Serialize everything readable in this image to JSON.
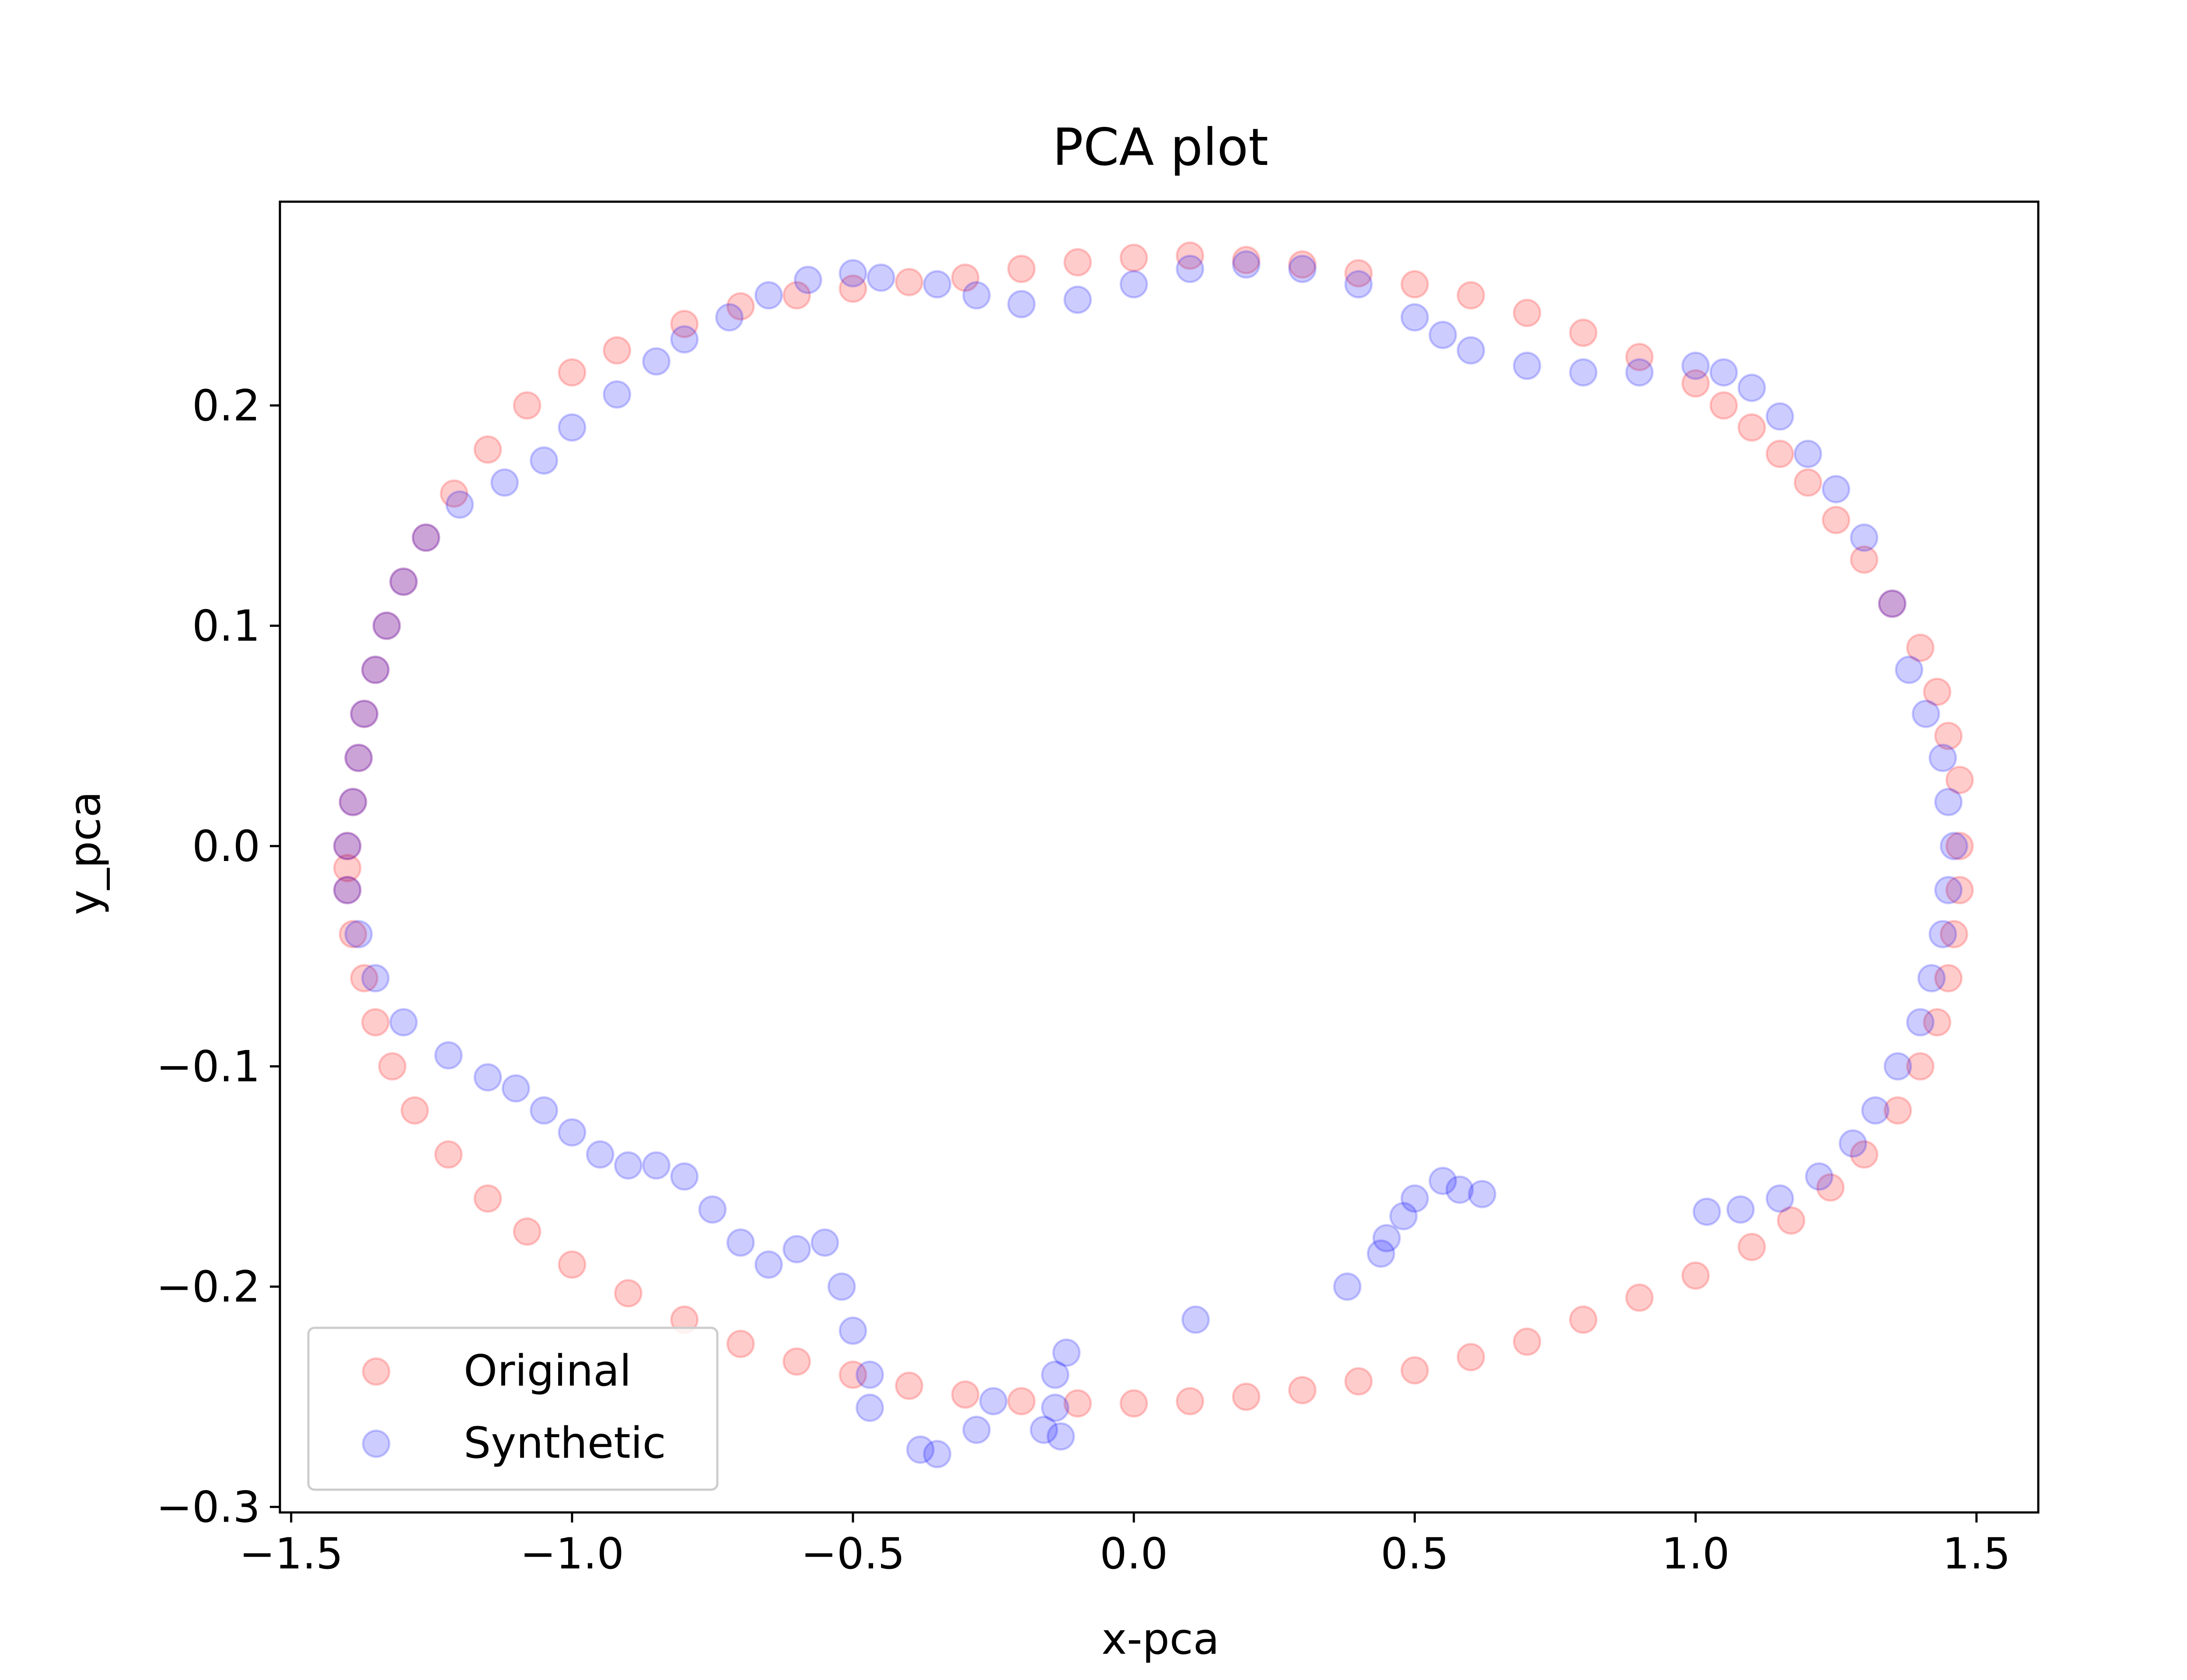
{
  "chart_data": {
    "type": "scatter",
    "title": "PCA plot",
    "xlabel": "x-pca",
    "ylabel": "y_pca",
    "xlim": [
      -1.52,
      1.61
    ],
    "ylim": [
      -0.3025,
      0.2925
    ],
    "xticks": [
      -1.5,
      -1.0,
      -0.5,
      0.0,
      0.5,
      1.0,
      1.5
    ],
    "xtick_labels": [
      "−1.5",
      "−1.0",
      "−0.5",
      "0.0",
      "0.5",
      "1.0",
      "1.5"
    ],
    "yticks": [
      0.2,
      0.1,
      0.0,
      -0.1,
      -0.2,
      -0.3
    ],
    "ytick_labels": [
      "0.2",
      "0.1",
      "0.0",
      "−0.1",
      "−0.2",
      "−0.3"
    ],
    "grid": false,
    "legend_position": "lower-left",
    "series": [
      {
        "name": "Original",
        "color": "#ff0000",
        "points": [
          [
            -1.4,
            -0.01
          ],
          [
            -1.4,
            0.0
          ],
          [
            -1.39,
            0.02
          ],
          [
            -1.38,
            0.04
          ],
          [
            -1.37,
            0.06
          ],
          [
            -1.35,
            0.08
          ],
          [
            -1.33,
            0.1
          ],
          [
            -1.3,
            0.12
          ],
          [
            -1.26,
            0.14
          ],
          [
            -1.21,
            0.16
          ],
          [
            -1.15,
            0.18
          ],
          [
            -1.08,
            0.2
          ],
          [
            -1.0,
            0.215
          ],
          [
            -0.92,
            0.225
          ],
          [
            -0.8,
            0.237
          ],
          [
            -0.7,
            0.245
          ],
          [
            -0.6,
            0.25
          ],
          [
            -0.5,
            0.253
          ],
          [
            -0.4,
            0.256
          ],
          [
            -0.3,
            0.258
          ],
          [
            -0.2,
            0.262
          ],
          [
            -0.1,
            0.265
          ],
          [
            0.0,
            0.267
          ],
          [
            0.1,
            0.268
          ],
          [
            0.2,
            0.266
          ],
          [
            0.3,
            0.264
          ],
          [
            0.4,
            0.26
          ],
          [
            0.5,
            0.255
          ],
          [
            0.6,
            0.25
          ],
          [
            0.7,
            0.242
          ],
          [
            0.8,
            0.233
          ],
          [
            0.9,
            0.222
          ],
          [
            1.0,
            0.21
          ],
          [
            1.05,
            0.2
          ],
          [
            1.1,
            0.19
          ],
          [
            1.15,
            0.178
          ],
          [
            1.2,
            0.165
          ],
          [
            1.25,
            0.148
          ],
          [
            1.3,
            0.13
          ],
          [
            1.35,
            0.11
          ],
          [
            1.4,
            0.09
          ],
          [
            1.43,
            0.07
          ],
          [
            1.45,
            0.05
          ],
          [
            1.47,
            0.03
          ],
          [
            1.47,
            0.0
          ],
          [
            1.47,
            -0.02
          ],
          [
            1.46,
            -0.04
          ],
          [
            1.45,
            -0.06
          ],
          [
            1.43,
            -0.08
          ],
          [
            1.4,
            -0.1
          ],
          [
            1.36,
            -0.12
          ],
          [
            1.3,
            -0.14
          ],
          [
            1.24,
            -0.155
          ],
          [
            1.17,
            -0.17
          ],
          [
            1.1,
            -0.182
          ],
          [
            1.0,
            -0.195
          ],
          [
            0.9,
            -0.205
          ],
          [
            0.8,
            -0.215
          ],
          [
            0.7,
            -0.225
          ],
          [
            0.6,
            -0.232
          ],
          [
            0.5,
            -0.238
          ],
          [
            0.4,
            -0.243
          ],
          [
            0.3,
            -0.247
          ],
          [
            0.2,
            -0.25
          ],
          [
            0.1,
            -0.252
          ],
          [
            0.0,
            -0.253
          ],
          [
            -0.1,
            -0.253
          ],
          [
            -0.2,
            -0.252
          ],
          [
            -0.3,
            -0.249
          ],
          [
            -0.4,
            -0.245
          ],
          [
            -0.5,
            -0.24
          ],
          [
            -0.6,
            -0.234
          ],
          [
            -0.7,
            -0.226
          ],
          [
            -0.8,
            -0.215
          ],
          [
            -0.9,
            -0.203
          ],
          [
            -1.0,
            -0.19
          ],
          [
            -1.08,
            -0.175
          ],
          [
            -1.15,
            -0.16
          ],
          [
            -1.22,
            -0.14
          ],
          [
            -1.28,
            -0.12
          ],
          [
            -1.32,
            -0.1
          ],
          [
            -1.35,
            -0.08
          ],
          [
            -1.37,
            -0.06
          ],
          [
            -1.39,
            -0.04
          ],
          [
            -1.4,
            -0.02
          ]
        ]
      },
      {
        "name": "Synthetic",
        "color": "#0000ff",
        "points": [
          [
            -1.4,
            0.0
          ],
          [
            -1.39,
            0.02
          ],
          [
            -1.38,
            0.04
          ],
          [
            -1.37,
            0.06
          ],
          [
            -1.35,
            0.08
          ],
          [
            -1.33,
            0.1
          ],
          [
            -1.3,
            0.12
          ],
          [
            -1.26,
            0.14
          ],
          [
            -1.2,
            0.155
          ],
          [
            -1.12,
            0.165
          ],
          [
            -1.05,
            0.175
          ],
          [
            -1.0,
            0.19
          ],
          [
            -0.92,
            0.205
          ],
          [
            -0.85,
            0.22
          ],
          [
            -0.8,
            0.23
          ],
          [
            -0.72,
            0.24
          ],
          [
            -0.65,
            0.25
          ],
          [
            -0.58,
            0.257
          ],
          [
            -0.5,
            0.26
          ],
          [
            -0.45,
            0.258
          ],
          [
            -0.35,
            0.255
          ],
          [
            -0.28,
            0.25
          ],
          [
            -0.2,
            0.246
          ],
          [
            -0.1,
            0.248
          ],
          [
            0.0,
            0.255
          ],
          [
            0.1,
            0.262
          ],
          [
            0.2,
            0.264
          ],
          [
            0.3,
            0.262
          ],
          [
            0.4,
            0.255
          ],
          [
            0.5,
            0.24
          ],
          [
            0.55,
            0.232
          ],
          [
            0.6,
            0.225
          ],
          [
            0.7,
            0.218
          ],
          [
            0.8,
            0.215
          ],
          [
            0.9,
            0.215
          ],
          [
            1.0,
            0.218
          ],
          [
            1.05,
            0.215
          ],
          [
            1.1,
            0.208
          ],
          [
            1.15,
            0.195
          ],
          [
            1.2,
            0.178
          ],
          [
            1.25,
            0.162
          ],
          [
            1.3,
            0.14
          ],
          [
            1.35,
            0.11
          ],
          [
            1.38,
            0.08
          ],
          [
            1.41,
            0.06
          ],
          [
            1.44,
            0.04
          ],
          [
            1.45,
            0.02
          ],
          [
            1.46,
            0.0
          ],
          [
            1.45,
            -0.02
          ],
          [
            1.44,
            -0.04
          ],
          [
            1.42,
            -0.06
          ],
          [
            1.4,
            -0.08
          ],
          [
            1.36,
            -0.1
          ],
          [
            1.32,
            -0.12
          ],
          [
            1.28,
            -0.135
          ],
          [
            1.22,
            -0.15
          ],
          [
            1.15,
            -0.16
          ],
          [
            1.08,
            -0.165
          ],
          [
            1.02,
            -0.166
          ],
          [
            0.62,
            -0.158
          ],
          [
            0.58,
            -0.156
          ],
          [
            0.55,
            -0.152
          ],
          [
            0.5,
            -0.16
          ],
          [
            0.48,
            -0.168
          ],
          [
            0.45,
            -0.178
          ],
          [
            0.44,
            -0.185
          ],
          [
            0.38,
            -0.2
          ],
          [
            0.11,
            -0.215
          ],
          [
            -0.12,
            -0.23
          ],
          [
            -0.14,
            -0.24
          ],
          [
            -0.14,
            -0.255
          ],
          [
            -0.13,
            -0.268
          ],
          [
            -0.16,
            -0.265
          ],
          [
            -0.25,
            -0.252
          ],
          [
            -0.28,
            -0.265
          ],
          [
            -0.35,
            -0.276
          ],
          [
            -0.38,
            -0.274
          ],
          [
            -0.47,
            -0.255
          ],
          [
            -0.47,
            -0.24
          ],
          [
            -0.5,
            -0.22
          ],
          [
            -0.52,
            -0.2
          ],
          [
            -0.55,
            -0.18
          ],
          [
            -0.6,
            -0.183
          ],
          [
            -0.65,
            -0.19
          ],
          [
            -0.7,
            -0.18
          ],
          [
            -0.75,
            -0.165
          ],
          [
            -0.8,
            -0.15
          ],
          [
            -0.85,
            -0.145
          ],
          [
            -0.9,
            -0.145
          ],
          [
            -0.95,
            -0.14
          ],
          [
            -1.0,
            -0.13
          ],
          [
            -1.05,
            -0.12
          ],
          [
            -1.1,
            -0.11
          ],
          [
            -1.15,
            -0.105
          ],
          [
            -1.22,
            -0.095
          ],
          [
            -1.3,
            -0.08
          ],
          [
            -1.35,
            -0.06
          ],
          [
            -1.38,
            -0.04
          ],
          [
            -1.4,
            -0.02
          ]
        ]
      }
    ]
  }
}
